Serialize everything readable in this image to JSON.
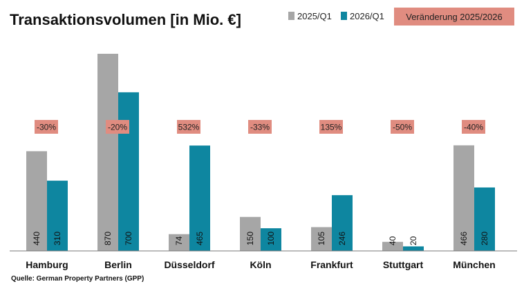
{
  "chart_data": {
    "type": "bar",
    "title": "Transaktionsvolumen [in Mio. €]",
    "categories": [
      "Hamburg",
      "Berlin",
      "Düsseldorf",
      "Köln",
      "Frankfurt",
      "Stuttgart",
      "München"
    ],
    "series": [
      {
        "name": "2025/Q1",
        "color": "#a6a6a6",
        "values": [
          440,
          870,
          74,
          150,
          105,
          40,
          466
        ]
      },
      {
        "name": "2026/Q1",
        "color": "#0e86a0",
        "values": [
          310,
          700,
          465,
          100,
          246,
          20,
          280
        ]
      }
    ],
    "changes": {
      "name": "Veränderung 2025/2026",
      "color": "#e08c80",
      "values": [
        "-30%",
        "-20%",
        "532%",
        "-33%",
        "135%",
        "-50%",
        "-40%"
      ]
    },
    "ylim": [
      0,
      870
    ],
    "grid": false,
    "legend": "top-right",
    "source": "Quelle: German Property Partners (GPP)"
  }
}
